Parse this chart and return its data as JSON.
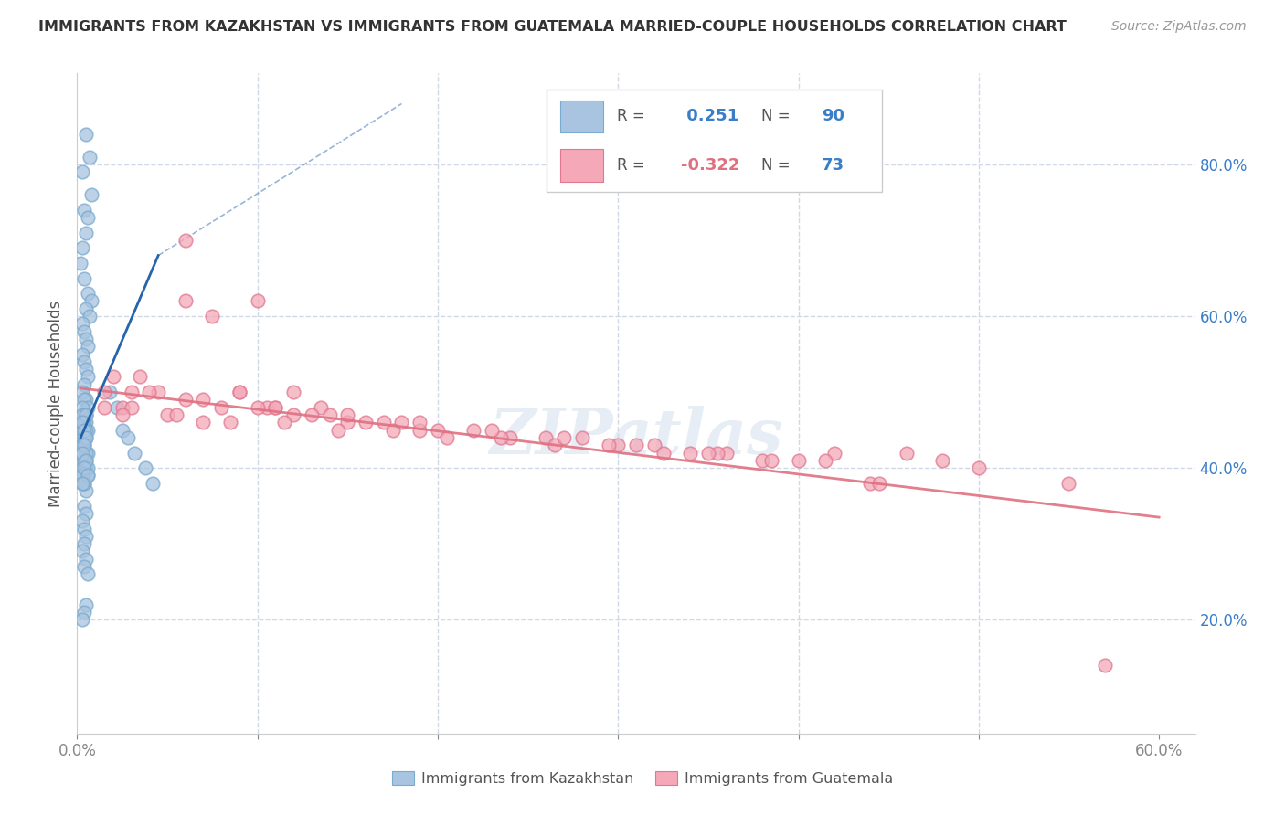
{
  "title": "IMMIGRANTS FROM KAZAKHSTAN VS IMMIGRANTS FROM GUATEMALA MARRIED-COUPLE HOUSEHOLDS CORRELATION CHART",
  "source": "Source: ZipAtlas.com",
  "ylabel": "Married-couple Households",
  "ylabel_right_ticks": [
    "20.0%",
    "40.0%",
    "60.0%",
    "80.0%"
  ],
  "ylabel_right_vals": [
    0.2,
    0.4,
    0.6,
    0.8
  ],
  "xlim": [
    0.0,
    0.62
  ],
  "ylim": [
    0.05,
    0.92
  ],
  "blue_R": 0.251,
  "blue_N": 90,
  "pink_R": -0.322,
  "pink_N": 73,
  "blue_color": "#a8c4e0",
  "pink_color": "#f4a8b8",
  "blue_line_color": "#1a5ca8",
  "pink_line_color": "#e07080",
  "blue_edge_color": "#7aaace",
  "pink_edge_color": "#e07890",
  "watermark": "ZIPatlas",
  "background_color": "#ffffff",
  "grid_color": "#d0d8e8",
  "title_color": "#333333",
  "source_color": "#999999",
  "blue_scatter_x": [
    0.005,
    0.007,
    0.003,
    0.008,
    0.004,
    0.006,
    0.005,
    0.003,
    0.002,
    0.004,
    0.006,
    0.008,
    0.005,
    0.007,
    0.003,
    0.004,
    0.005,
    0.006,
    0.003,
    0.004,
    0.005,
    0.006,
    0.004,
    0.003,
    0.005,
    0.004,
    0.006,
    0.003,
    0.005,
    0.004,
    0.003,
    0.005,
    0.004,
    0.006,
    0.003,
    0.004,
    0.005,
    0.003,
    0.004,
    0.002,
    0.006,
    0.005,
    0.004,
    0.003,
    0.005,
    0.004,
    0.006,
    0.003,
    0.004,
    0.005,
    0.003,
    0.004,
    0.005,
    0.004,
    0.003,
    0.005,
    0.004,
    0.006,
    0.003,
    0.004,
    0.005,
    0.003,
    0.004,
    0.005,
    0.004,
    0.003,
    0.005,
    0.004,
    0.006,
    0.003,
    0.004,
    0.005,
    0.003,
    0.004,
    0.005,
    0.004,
    0.003,
    0.005,
    0.004,
    0.006,
    0.018,
    0.022,
    0.025,
    0.028,
    0.032,
    0.038,
    0.042,
    0.005,
    0.004,
    0.003
  ],
  "blue_scatter_y": [
    0.84,
    0.81,
    0.79,
    0.76,
    0.74,
    0.73,
    0.71,
    0.69,
    0.67,
    0.65,
    0.63,
    0.62,
    0.61,
    0.6,
    0.59,
    0.58,
    0.57,
    0.56,
    0.55,
    0.54,
    0.53,
    0.52,
    0.51,
    0.5,
    0.49,
    0.49,
    0.48,
    0.48,
    0.47,
    0.47,
    0.46,
    0.46,
    0.45,
    0.45,
    0.45,
    0.44,
    0.44,
    0.43,
    0.43,
    0.42,
    0.42,
    0.41,
    0.41,
    0.4,
    0.4,
    0.39,
    0.39,
    0.38,
    0.38,
    0.37,
    0.47,
    0.46,
    0.45,
    0.44,
    0.43,
    0.42,
    0.41,
    0.4,
    0.39,
    0.38,
    0.47,
    0.46,
    0.45,
    0.44,
    0.43,
    0.42,
    0.41,
    0.4,
    0.39,
    0.38,
    0.35,
    0.34,
    0.33,
    0.32,
    0.31,
    0.3,
    0.29,
    0.28,
    0.27,
    0.26,
    0.5,
    0.48,
    0.45,
    0.44,
    0.42,
    0.4,
    0.38,
    0.22,
    0.21,
    0.2
  ],
  "pink_scatter_x": [
    0.015,
    0.025,
    0.035,
    0.045,
    0.06,
    0.075,
    0.09,
    0.105,
    0.12,
    0.135,
    0.015,
    0.03,
    0.05,
    0.07,
    0.09,
    0.11,
    0.13,
    0.15,
    0.17,
    0.19,
    0.02,
    0.04,
    0.06,
    0.08,
    0.1,
    0.12,
    0.14,
    0.16,
    0.18,
    0.2,
    0.22,
    0.24,
    0.26,
    0.28,
    0.3,
    0.32,
    0.34,
    0.36,
    0.38,
    0.4,
    0.42,
    0.44,
    0.46,
    0.48,
    0.5,
    0.025,
    0.055,
    0.085,
    0.115,
    0.145,
    0.175,
    0.205,
    0.235,
    0.265,
    0.295,
    0.325,
    0.355,
    0.385,
    0.415,
    0.445,
    0.03,
    0.07,
    0.11,
    0.15,
    0.19,
    0.23,
    0.27,
    0.31,
    0.35,
    0.55,
    0.06,
    0.1,
    0.57
  ],
  "pink_scatter_y": [
    0.5,
    0.48,
    0.52,
    0.5,
    0.62,
    0.6,
    0.5,
    0.48,
    0.5,
    0.48,
    0.48,
    0.48,
    0.47,
    0.46,
    0.5,
    0.48,
    0.47,
    0.46,
    0.46,
    0.45,
    0.52,
    0.5,
    0.49,
    0.48,
    0.48,
    0.47,
    0.47,
    0.46,
    0.46,
    0.45,
    0.45,
    0.44,
    0.44,
    0.44,
    0.43,
    0.43,
    0.42,
    0.42,
    0.41,
    0.41,
    0.42,
    0.38,
    0.42,
    0.41,
    0.4,
    0.47,
    0.47,
    0.46,
    0.46,
    0.45,
    0.45,
    0.44,
    0.44,
    0.43,
    0.43,
    0.42,
    0.42,
    0.41,
    0.41,
    0.38,
    0.5,
    0.49,
    0.48,
    0.47,
    0.46,
    0.45,
    0.44,
    0.43,
    0.42,
    0.38,
    0.7,
    0.62,
    0.14
  ]
}
